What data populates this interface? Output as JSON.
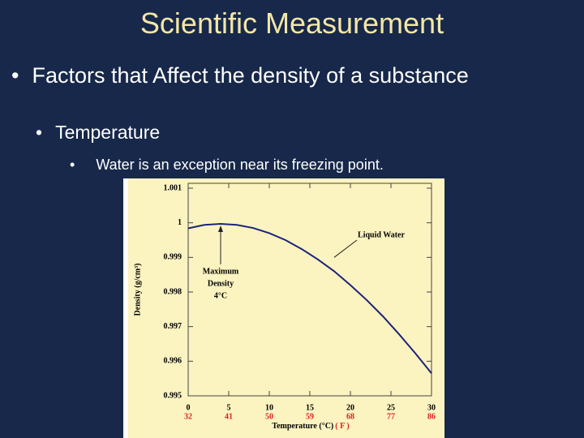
{
  "title": "Scientific Measurement",
  "bullets": [
    {
      "text": "Factors that Affect the density of a substance",
      "children": [
        {
          "text": "Temperature",
          "children": [
            {
              "text": "Water is an exception near its freezing point."
            }
          ]
        }
      ]
    }
  ],
  "chart_data": {
    "type": "line",
    "xlabel": "Temperature (°C)",
    "x2label": "( F )",
    "ylabel": "Density (g/cm³)",
    "x": [
      0,
      2,
      4,
      6,
      8,
      10,
      12,
      14,
      16,
      18,
      20,
      22,
      24,
      26,
      28,
      30
    ],
    "series": [
      {
        "color": "#1c237a",
        "values": [
          0.99984,
          0.99994,
          0.99997,
          0.99994,
          0.99985,
          0.9997,
          0.9995,
          0.99924,
          0.99894,
          0.9986,
          0.9982,
          0.99777,
          0.9973,
          0.99678,
          0.99623,
          0.99565
        ]
      }
    ],
    "xlim": [
      0,
      30
    ],
    "xticks": [
      0,
      5,
      10,
      15,
      20,
      25,
      30
    ],
    "x2lim": [
      32,
      86
    ],
    "x2ticks": [
      32,
      41,
      50,
      59,
      68,
      77,
      86
    ],
    "ylim": [
      0.995,
      1.001
    ],
    "yticks": [
      0.995,
      0.996,
      0.997,
      0.998,
      0.999,
      1,
      1.001
    ],
    "annotations": [
      {
        "lines": [
          "Liquid Water"
        ],
        "x": 18,
        "y": 0.999
      },
      {
        "lines": [
          "Maximum",
          "Density",
          "4°C"
        ],
        "x": 4,
        "y": 0.99997
      }
    ]
  }
}
